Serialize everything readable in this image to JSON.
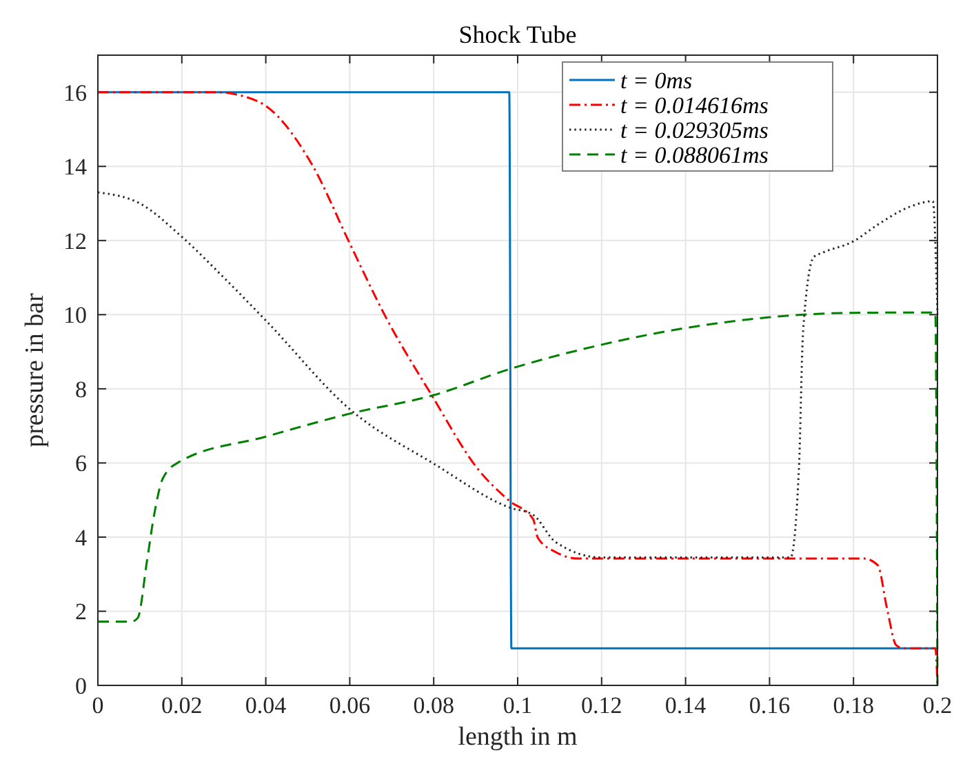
{
  "chart_data": {
    "type": "line",
    "title": "Shock Tube",
    "xlabel": "length in m",
    "ylabel": "pressure in bar",
    "xlim": [
      0,
      0.2
    ],
    "ylim": [
      0,
      17
    ],
    "xticks": [
      0,
      0.02,
      0.04,
      0.06,
      0.08,
      0.1,
      0.12,
      0.14,
      0.16,
      0.18,
      0.2
    ],
    "yticks": [
      0,
      2,
      4,
      6,
      8,
      10,
      12,
      14,
      16
    ],
    "grid": true,
    "legend": "top right",
    "series": [
      {
        "name": "t = 0ms",
        "color": "#0072bd",
        "line_style": "solid",
        "x": [
          0,
          0.098,
          0.0985,
          0.2
        ],
        "values": [
          16,
          16,
          1,
          1
        ]
      },
      {
        "name": "t = 0.014616ms",
        "color": "#ff0000",
        "line_style": "dashdot",
        "x": [
          0,
          0.028,
          0.038,
          0.0511,
          0.06,
          0.0686,
          0.0795,
          0.0905,
          0.098,
          0.1037,
          0.1048,
          0.109,
          0.1146,
          0.1825,
          0.1858,
          0.1879,
          0.1902,
          0.192,
          0.1995,
          0.2
        ],
        "values": [
          16,
          16,
          15.76,
          14.03,
          11.92,
          9.93,
          7.83,
          5.84,
          4.98,
          4.48,
          3.98,
          3.6,
          3.42,
          3.42,
          3.24,
          2.12,
          1.08,
          1,
          1,
          0
        ]
      },
      {
        "name": "t = 0.029305ms",
        "color": "#262626",
        "line_style": "dotted",
        "x": [
          0,
          0.01,
          0.02,
          0.03,
          0.0402,
          0.06,
          0.0803,
          0.098,
          0.1037,
          0.109,
          0.12,
          0.165,
          0.167,
          0.168,
          0.1705,
          0.1726,
          0.18,
          0.1858,
          0.1934,
          0.1989,
          0.2
        ],
        "values": [
          13.3,
          13,
          12.1,
          11,
          9.82,
          7.45,
          5.96,
          4.8,
          4.6,
          3.87,
          3.45,
          3.45,
          5.84,
          9.56,
          11.55,
          11.67,
          11.98,
          12.43,
          12.91,
          13.06,
          10
        ]
      },
      {
        "name": "t = 0.088061ms",
        "color": "#008000",
        "line_style": "dashed",
        "x": [
          0,
          0.008,
          0.0095,
          0.0117,
          0.0134,
          0.0155,
          0.0194,
          0.04,
          0.06,
          0.08,
          0.098,
          0.12,
          0.14,
          0.16,
          0.18,
          0.1989,
          0.1995,
          0.2
        ],
        "values": [
          1.72,
          1.72,
          1.82,
          3.36,
          4.6,
          5.59,
          6.03,
          6.71,
          7.33,
          7.83,
          8.53,
          9.19,
          9.64,
          9.93,
          10.05,
          10.06,
          10.06,
          0
        ]
      }
    ]
  }
}
